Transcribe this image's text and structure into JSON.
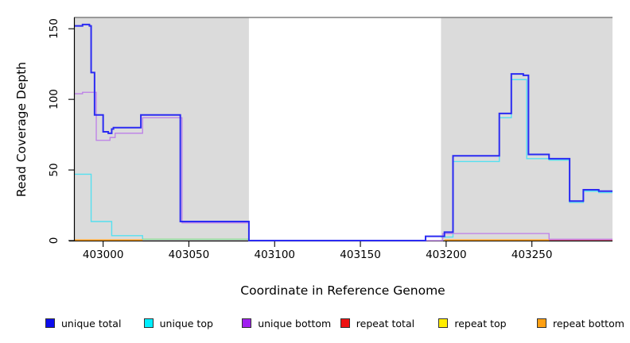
{
  "chart": {
    "xlabel": "Coordinate in Reference Genome",
    "ylabel": "Read Coverage Depth"
  },
  "legend": {
    "items": [
      {
        "label": "unique total",
        "color": "#0d0dee"
      },
      {
        "label": "unique top",
        "color": "#00eeff"
      },
      {
        "label": "unique bottom",
        "color": "#a020f0"
      },
      {
        "label": "repeat total",
        "color": "#ee1111"
      },
      {
        "label": "repeat top",
        "color": "#ffee00"
      },
      {
        "label": "repeat bottom",
        "color": "#ffa013"
      }
    ]
  },
  "chart_data": {
    "type": "line",
    "title": "",
    "xlabel": "Coordinate in Reference Genome",
    "ylabel": "Read Coverage Depth",
    "x_range": [
      402983,
      403297
    ],
    "y_range": [
      0,
      158
    ],
    "x_ticks": [
      403000,
      403050,
      403100,
      403150,
      403200,
      403250
    ],
    "y_ticks": [
      0,
      50,
      100,
      150
    ],
    "grid": false,
    "legend_position": "bottom",
    "panel_color": "#dbdbdb",
    "top_border_color": "#7e7e7e",
    "shaded_regions": [
      {
        "x1": 402983,
        "x2": 403085
      },
      {
        "x1": 403197,
        "x2": 403297
      }
    ],
    "series": [
      {
        "id": "unique-top",
        "name": "unique top",
        "legend_color": "#00eeff",
        "line_color": "#55e0f0",
        "line_width": 1.4,
        "segments": [
          [
            402983,
            402993,
            47
          ],
          [
            402993,
            403005,
            13.5
          ],
          [
            403005,
            403023,
            3.5
          ],
          [
            403023,
            403085,
            1
          ],
          [
            403197,
            403204,
            2.5
          ],
          [
            403204,
            403231,
            56
          ],
          [
            403231,
            403238,
            87
          ],
          [
            403238,
            403247,
            114
          ],
          [
            403247,
            403260,
            58
          ],
          [
            403260,
            403272,
            57
          ],
          [
            403272,
            403280,
            27
          ],
          [
            403280,
            403289,
            35
          ],
          [
            403289,
            403297,
            34
          ]
        ]
      },
      {
        "id": "repeat-top",
        "name": "repeat top",
        "legend_color": "#ffee00",
        "line_color": "#96dc96",
        "line_width": 1.4,
        "segments": [
          [
            403023,
            403085,
            1
          ]
        ]
      },
      {
        "id": "repeat-bottom",
        "name": "repeat bottom",
        "legend_color": "#ffa013",
        "line_color": "#ff9e1b",
        "line_width": 1.6,
        "segments": [
          [
            402983,
            403023,
            0.4
          ],
          [
            403199,
            403260,
            0.4
          ]
        ]
      },
      {
        "id": "repeat-total",
        "name": "repeat total",
        "legend_color": "#ee1111",
        "line_color": "#e0608c",
        "line_width": 1.4,
        "segments": [
          [
            403260,
            403297,
            0.4
          ]
        ]
      },
      {
        "id": "unique-bottom",
        "name": "unique bottom",
        "legend_color": "#a020f0",
        "line_color": "#bc7ee8",
        "line_width": 1.3,
        "segments": [
          [
            402983,
            402988,
            104
          ],
          [
            402988,
            402996,
            105
          ],
          [
            402996,
            403004,
            71
          ],
          [
            403004,
            403007,
            73
          ],
          [
            403007,
            403023,
            76
          ],
          [
            403023,
            403046,
            87
          ],
          [
            403046,
            403085,
            12.5
          ],
          [
            403085,
            403198,
            0
          ],
          [
            403198,
            403260,
            5
          ],
          [
            403260,
            403297,
            1
          ]
        ]
      },
      {
        "id": "unique-total",
        "name": "unique total",
        "legend_color": "#0d0dee",
        "line_color": "#2b2bf2",
        "line_width": 2,
        "segments": [
          [
            402983,
            402988,
            152
          ],
          [
            402988,
            402992,
            153
          ],
          [
            402992,
            402993,
            152
          ],
          [
            402993,
            402995,
            119
          ],
          [
            402995,
            403000,
            89
          ],
          [
            403000,
            403003,
            77
          ],
          [
            403003,
            403005,
            76
          ],
          [
            403005,
            403006,
            79
          ],
          [
            403006,
            403022,
            80
          ],
          [
            403022,
            403045,
            89
          ],
          [
            403045,
            403085,
            13.5
          ],
          [
            403085,
            403188,
            0
          ],
          [
            403188,
            403199,
            3
          ],
          [
            403199,
            403204,
            6
          ],
          [
            403204,
            403231,
            60
          ],
          [
            403231,
            403238,
            90
          ],
          [
            403238,
            403245,
            118
          ],
          [
            403245,
            403248,
            117
          ],
          [
            403248,
            403260,
            61
          ],
          [
            403260,
            403272,
            58
          ],
          [
            403272,
            403280,
            28
          ],
          [
            403280,
            403289,
            36
          ],
          [
            403289,
            403297,
            35
          ]
        ]
      }
    ]
  }
}
